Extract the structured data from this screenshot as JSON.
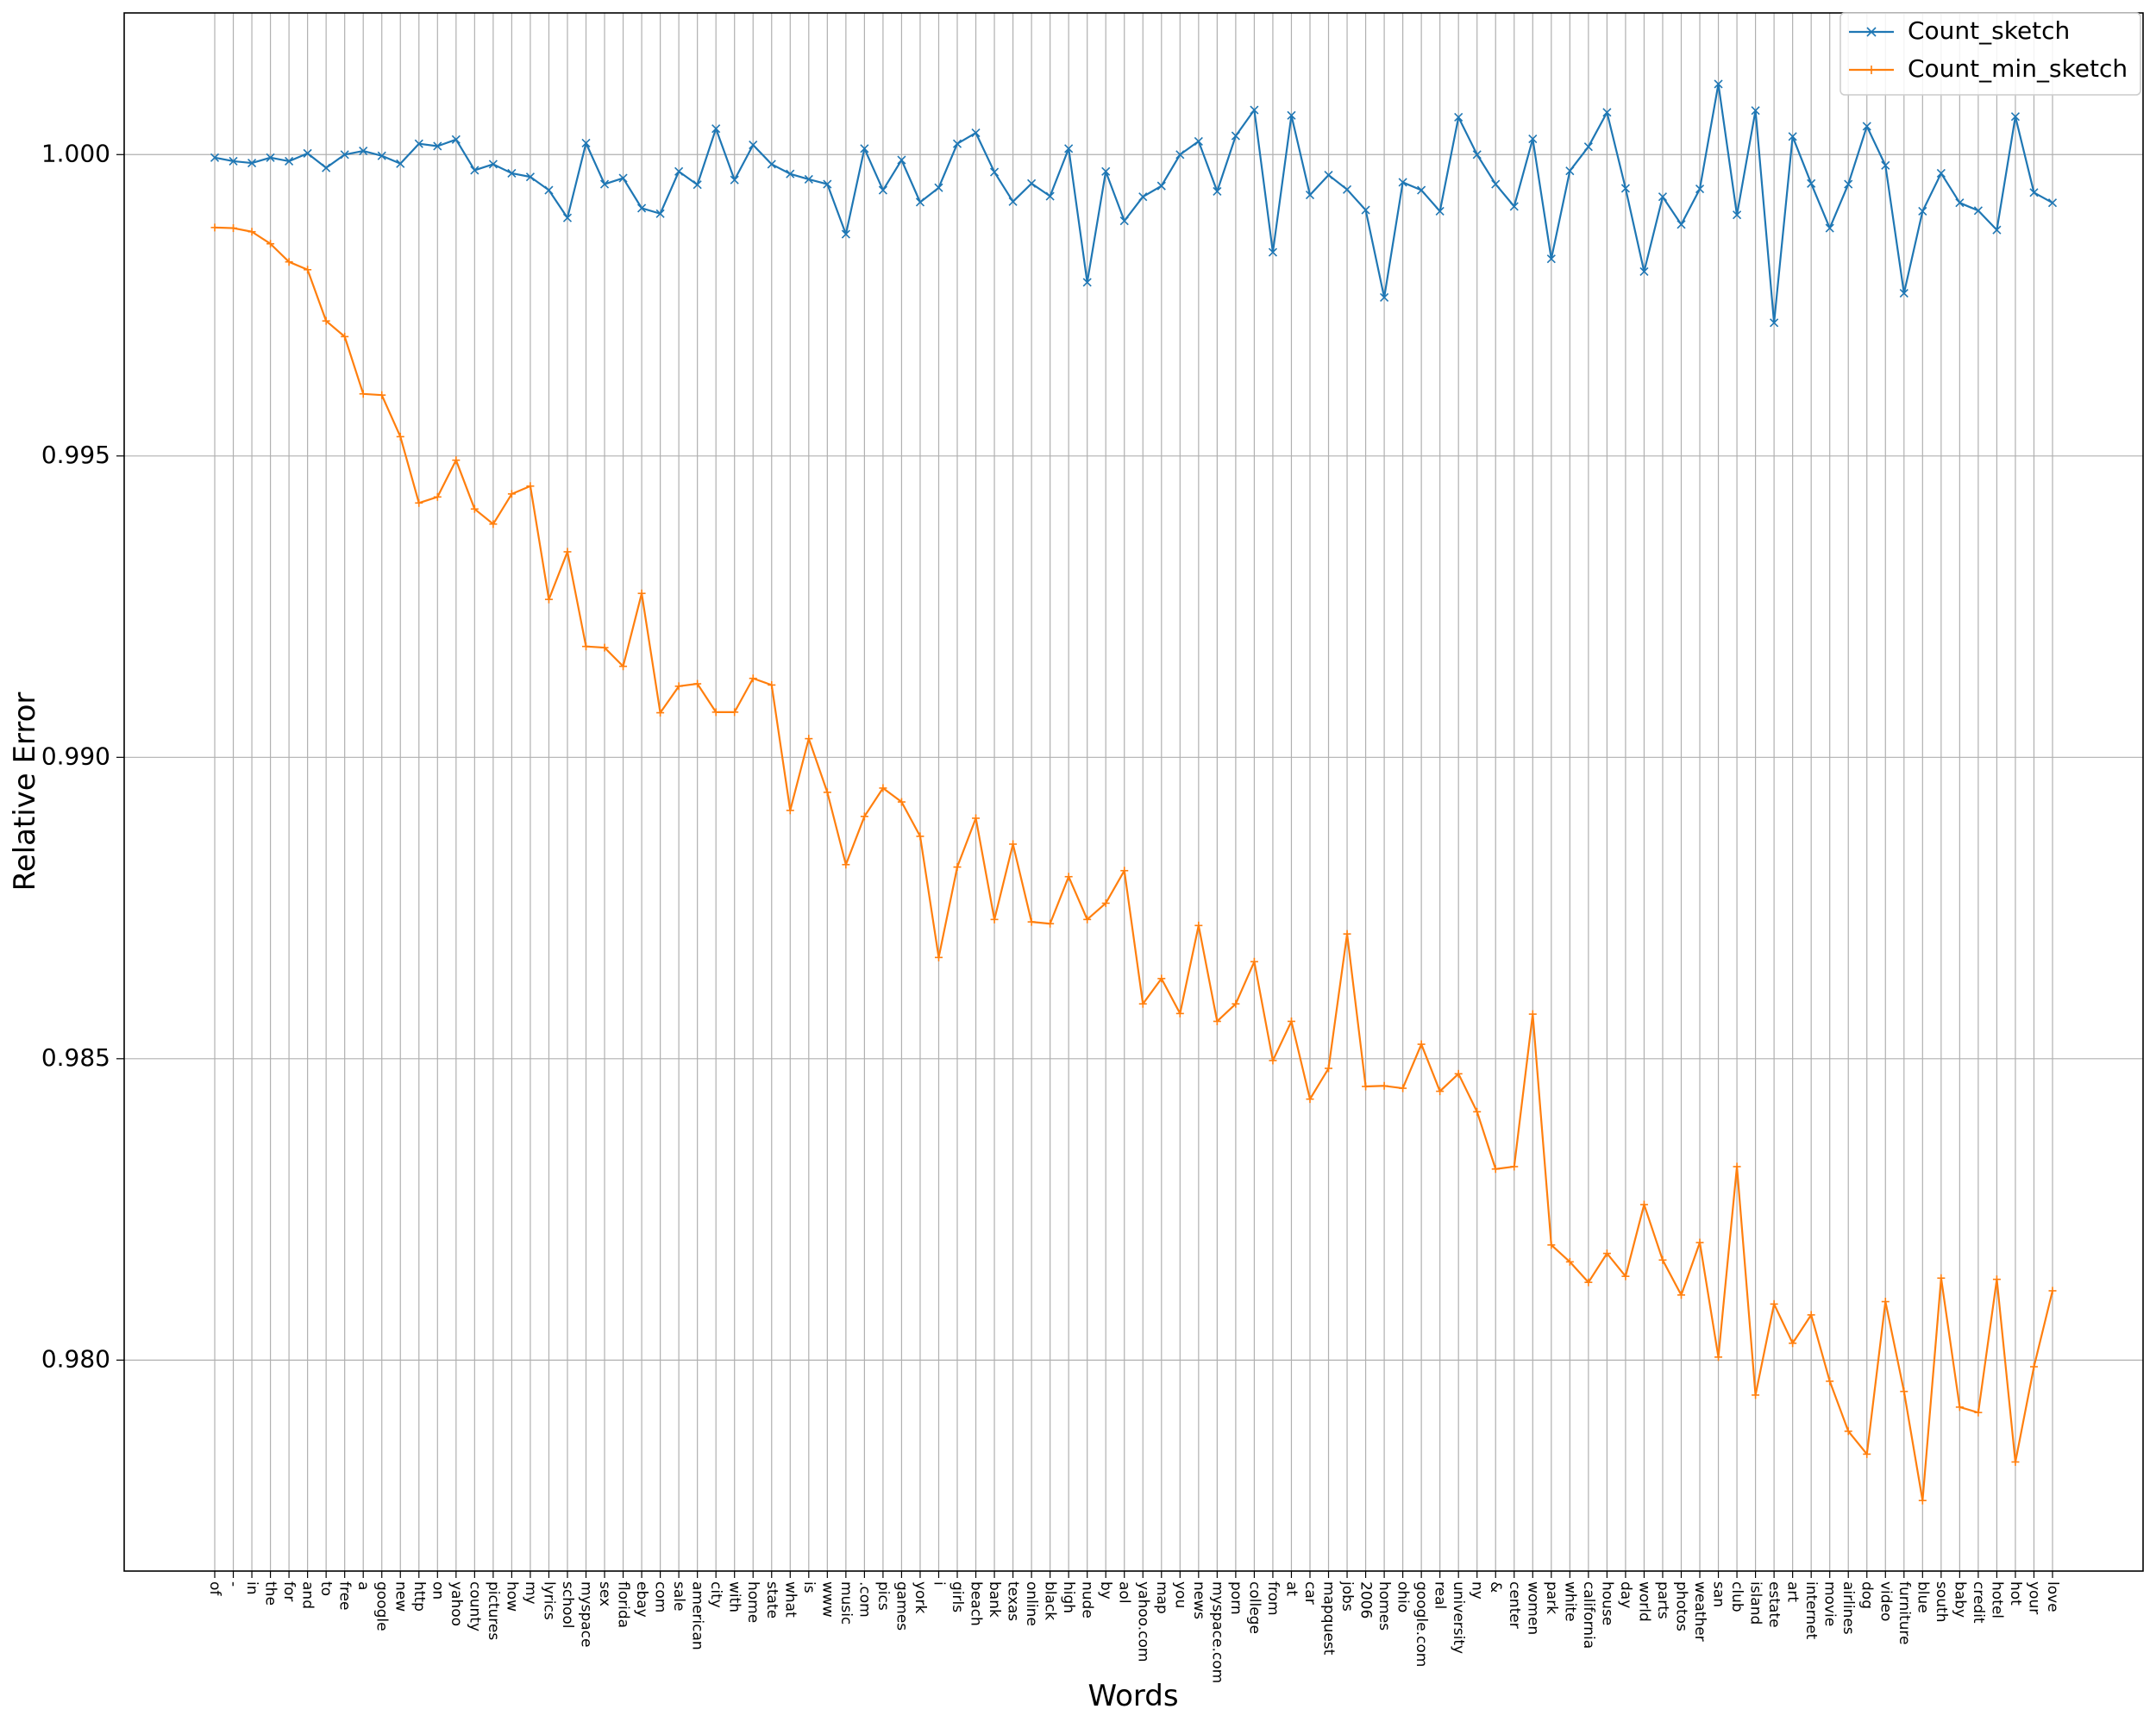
{
  "chart_data": {
    "type": "line",
    "xlabel": "Words",
    "ylabel": "Relative  Error",
    "ylim": [
      0.9765,
      1.00235
    ],
    "yticks": [
      "0.980",
      "0.985",
      "0.990",
      "0.995",
      "1.000"
    ],
    "ytick_values": [
      0.98,
      0.985,
      0.99,
      0.995,
      1.0
    ],
    "grid": true,
    "legend_position": "top-right",
    "categories": [
      "of",
      "-",
      "in",
      "the",
      "for",
      "and",
      "to",
      "free",
      "a",
      "google",
      "new",
      "http",
      "on",
      "yahoo",
      "county",
      "pictures",
      "how",
      "my",
      "lyrics",
      "school",
      "myspace",
      "sex",
      "florida",
      "ebay",
      "com",
      "sale",
      "american",
      "city",
      "with",
      "home",
      "state",
      "what",
      "is",
      "www",
      "music",
      ".com",
      "pics",
      "games",
      "york",
      "i",
      "girls",
      "beach",
      "bank",
      "texas",
      "online",
      "black",
      "high",
      "nude",
      "by",
      "aol",
      "yahoo.com",
      "map",
      "you",
      "news",
      "myspace.com",
      "porn",
      "college",
      "from",
      "at",
      "car",
      "mapquest",
      "jobs",
      "2006",
      "homes",
      "ohio",
      "google.com",
      "real",
      "university",
      "ny",
      "&",
      "center",
      "women",
      "park",
      "white",
      "california",
      "house",
      "day",
      "world",
      "parts",
      "photos",
      "weather",
      "san",
      "club",
      "island",
      "estate",
      "art",
      "internet",
      "movie",
      "airlines",
      "dog",
      "video",
      "furniture",
      "blue",
      "south",
      "baby",
      "credit",
      "hotel",
      "hot",
      "your",
      "love"
    ],
    "series": [
      {
        "name": "Count_sketch",
        "color": "#1f77b4",
        "marker": "x",
        "values": [
          0.99995,
          0.99989,
          0.99986,
          0.99995,
          0.99989,
          1.00002,
          0.99978,
          1.0,
          1.00006,
          0.99998,
          0.99985,
          1.00018,
          1.00014,
          1.00025,
          0.99974,
          0.99984,
          0.99969,
          0.99963,
          0.99941,
          0.99895,
          1.00019,
          0.99951,
          0.99961,
          0.99911,
          0.99902,
          0.99972,
          0.9995,
          1.00043,
          0.99958,
          1.00016,
          0.99984,
          0.99968,
          0.99959,
          0.99951,
          0.99868,
          1.0001,
          0.99941,
          0.99991,
          0.99921,
          0.99945,
          1.00018,
          1.00036,
          0.99971,
          0.99922,
          0.99952,
          0.99931,
          1.0001,
          0.99788,
          0.99972,
          0.9989,
          0.9993,
          0.99948,
          1.0,
          1.00022,
          0.99939,
          1.00031,
          1.00074,
          0.99838,
          1.00065,
          0.99933,
          0.99966,
          0.99942,
          0.99908,
          0.99763,
          0.99954,
          0.99941,
          0.99906,
          1.00062,
          1.0,
          0.99951,
          0.99914,
          1.00026,
          0.99827,
          0.99973,
          1.00013,
          1.0007,
          0.99944,
          0.99806,
          0.9993,
          0.99884,
          0.99943,
          1.00117,
          0.999,
          1.00073,
          0.99721,
          1.0003,
          0.99952,
          0.99878,
          0.99951,
          1.00047,
          0.99982,
          0.9977,
          0.99906,
          0.99969,
          0.9992,
          0.99907,
          0.99875,
          1.00063,
          0.99937,
          0.9992
        ]
      },
      {
        "name": "Count_min_sketch",
        "color": "#ff7f0e",
        "marker": "+",
        "values": [
          0.99879,
          0.99878,
          0.99872,
          0.99852,
          0.99822,
          0.99809,
          0.99724,
          0.99698,
          0.99603,
          0.99601,
          0.99532,
          0.99422,
          0.99432,
          0.99493,
          0.99412,
          0.99387,
          0.99437,
          0.9945,
          0.99262,
          0.99341,
          0.99184,
          0.99182,
          0.99151,
          0.99272,
          0.99074,
          0.99118,
          0.99122,
          0.99075,
          0.99075,
          0.99131,
          0.9912,
          0.98912,
          0.99031,
          0.98942,
          0.98822,
          0.98902,
          0.98949,
          0.98926,
          0.98869,
          0.98668,
          0.98818,
          0.98899,
          0.98731,
          0.98856,
          0.98727,
          0.98724,
          0.98802,
          0.98731,
          0.98758,
          0.98812,
          0.98591,
          0.98633,
          0.98575,
          0.98721,
          0.98562,
          0.98591,
          0.98661,
          0.98497,
          0.98562,
          0.98433,
          0.98484,
          0.98707,
          0.98454,
          0.98455,
          0.98451,
          0.98524,
          0.98446,
          0.98475,
          0.98412,
          0.98317,
          0.98321,
          0.98574,
          0.98191,
          0.98163,
          0.98129,
          0.98177,
          0.98139,
          0.98258,
          0.98166,
          0.98108,
          0.98195,
          0.98005,
          0.98321,
          0.97942,
          0.98093,
          0.98028,
          0.98075,
          0.97965,
          0.97882,
          0.97844,
          0.98097,
          0.97948,
          0.97767,
          0.98136,
          0.97922,
          0.97913,
          0.98134,
          0.97831,
          0.97989,
          0.98115
        ]
      }
    ]
  }
}
